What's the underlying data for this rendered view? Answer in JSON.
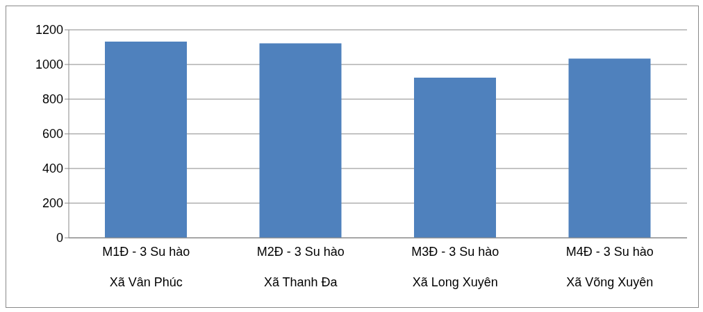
{
  "chart_data": {
    "type": "bar",
    "categories": [
      "M1Đ - 3 Su hào\nXã Vân Phúc",
      "M2Đ - 3 Su hào\nXã Thanh Đa",
      "M3Đ - 3 Su hào\nXã Long Xuyên",
      "M4Đ - 3 Su hào\nXã Võng Xuyên"
    ],
    "values": [
      1132,
      1122,
      924,
      1034
    ],
    "color": "#4f81bd",
    "ylim": [
      0,
      1200
    ],
    "yticks": [
      0,
      200,
      400,
      600,
      800,
      1000,
      1200
    ],
    "grid": "y"
  }
}
